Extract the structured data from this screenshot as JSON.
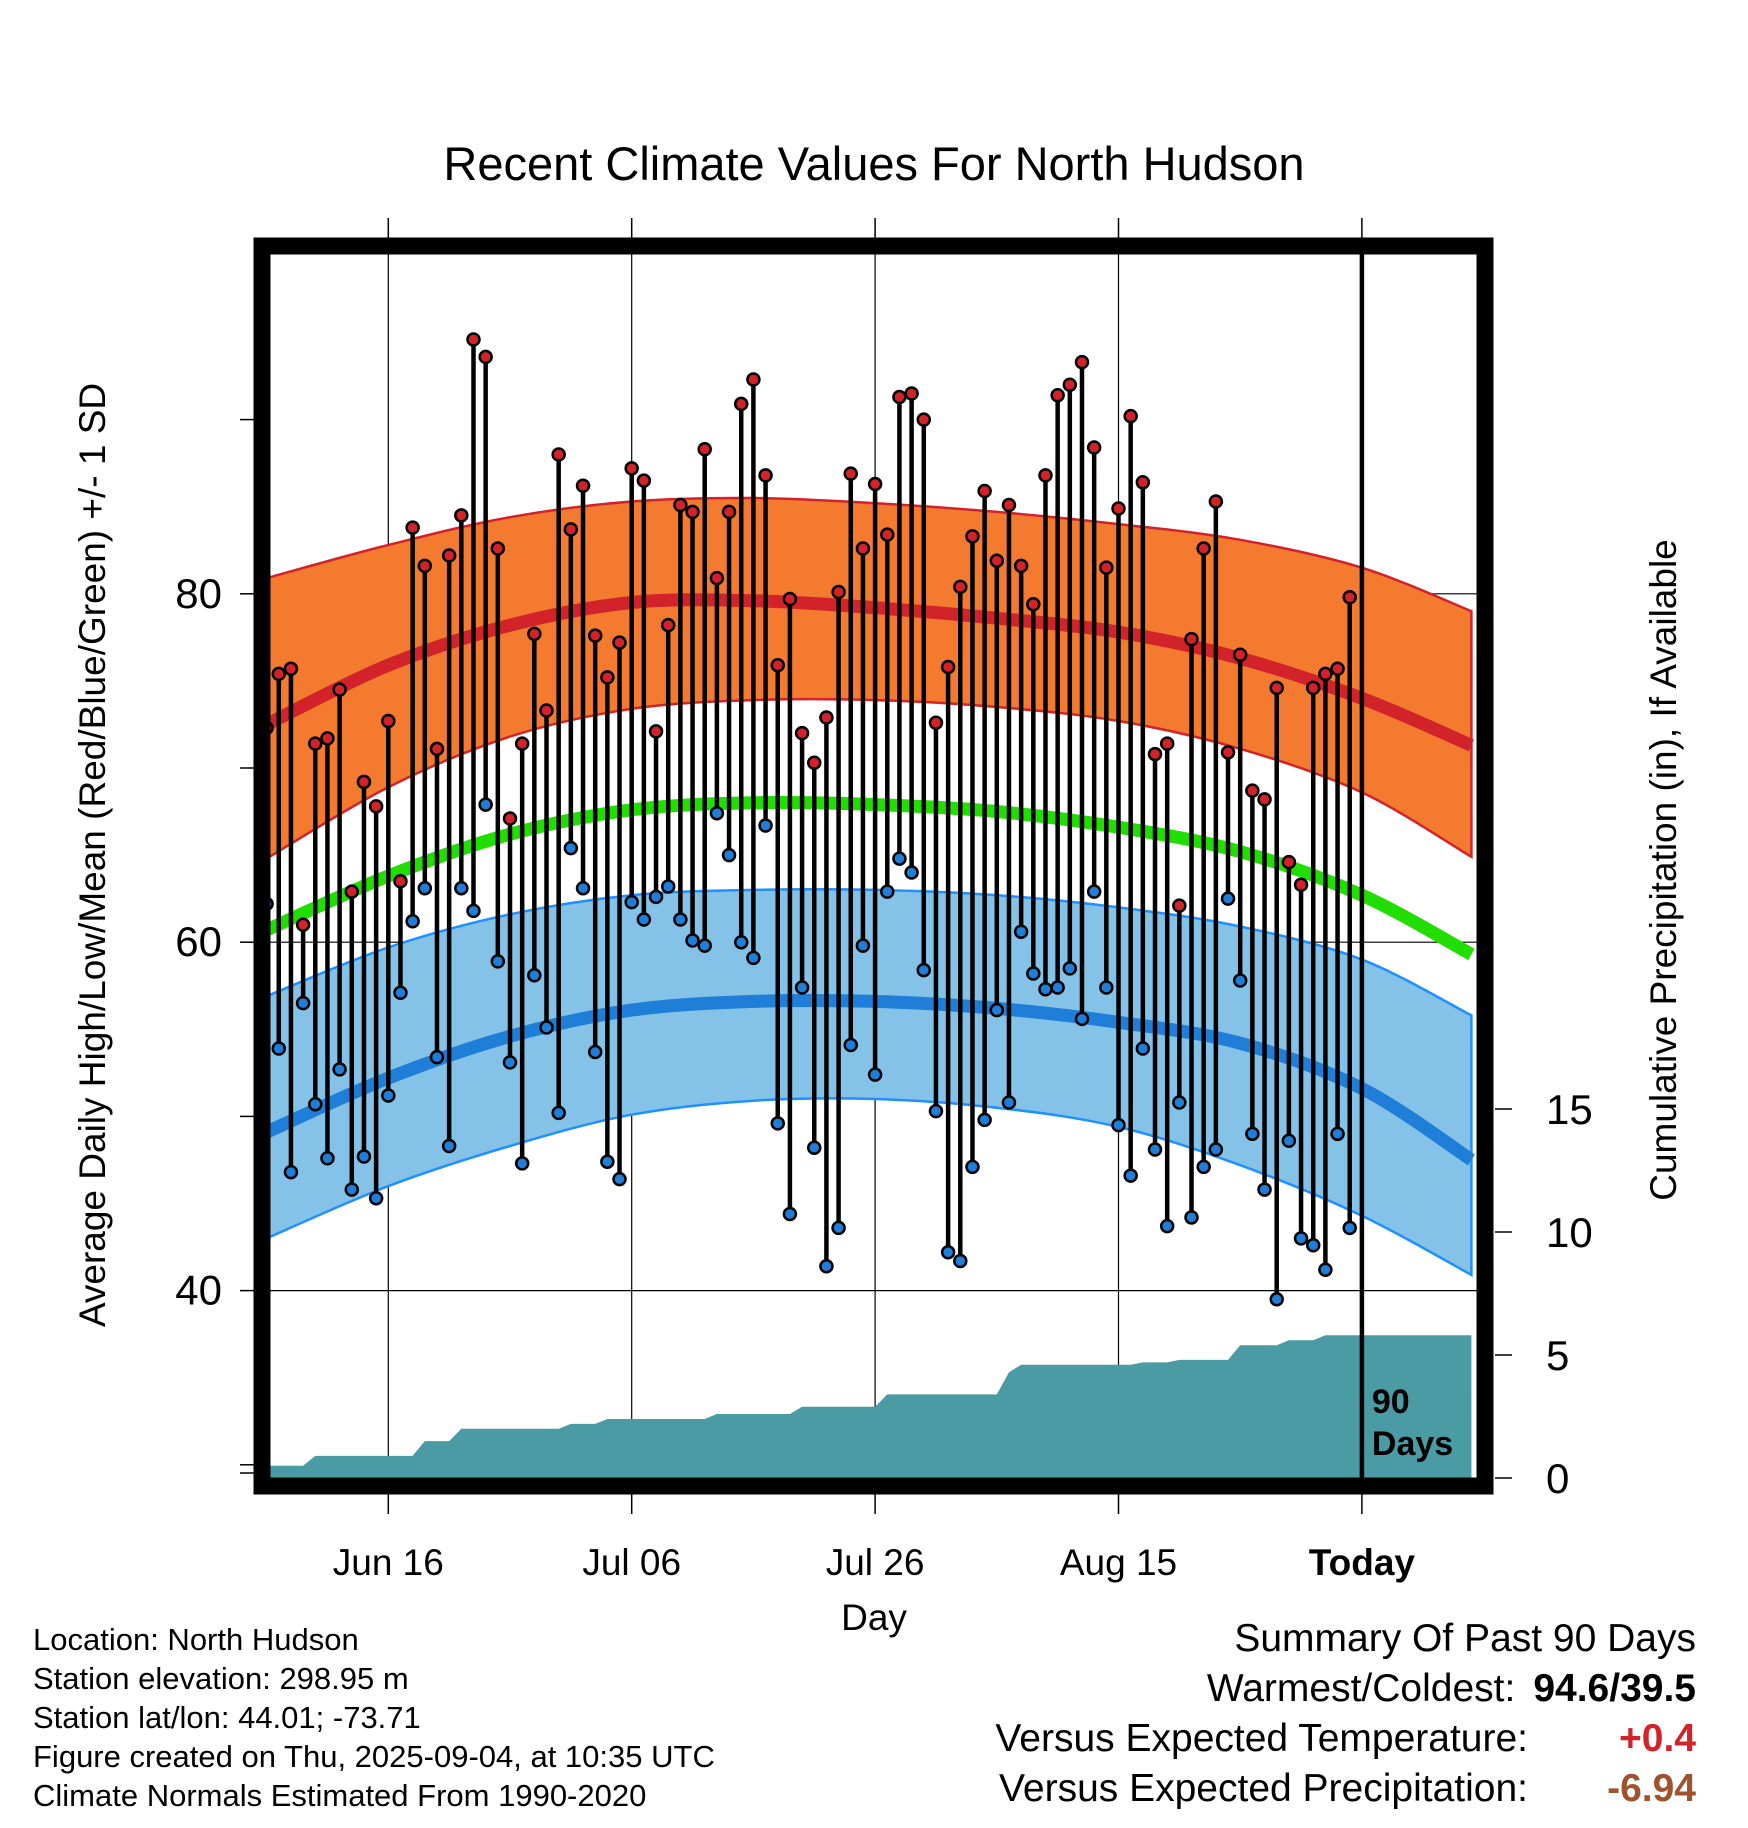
{
  "chart_data": {
    "type": "line",
    "title": "Recent Climate Values For North Hudson",
    "xlabel": "Day",
    "ylabel": "Average Daily High/Low/Mean (Red/Blue/Green) +/- 1 SD",
    "ylabel_right": "Cumulative Precipitation (in), If Available",
    "x_tick_labels": [
      "Jun 16",
      "Jul 06",
      "Jul 26",
      "Aug 15",
      "Today"
    ],
    "x_tick_days": [
      10,
      30,
      50,
      70,
      90
    ],
    "xlim": [
      -1,
      99
    ],
    "ylim": [
      26,
      96
    ],
    "y_ticks": [
      40,
      60,
      80
    ],
    "y_ticks_minor": [
      30,
      50,
      70,
      90
    ],
    "y2_ticks": [
      0,
      5,
      10,
      15
    ],
    "y2_lim": [
      0,
      56
    ],
    "today_label": "90\nDays",
    "normals": {
      "x": [
        0,
        10,
        20,
        30,
        40,
        50,
        60,
        70,
        80,
        90,
        99
      ],
      "high_mean": [
        72.5,
        75.9,
        78.2,
        79.5,
        79.6,
        79.2,
        78.6,
        77.8,
        76.3,
        74.0,
        71.3
      ],
      "high_upper": [
        80.9,
        82.8,
        84.4,
        85.3,
        85.5,
        85.2,
        84.7,
        84.0,
        83.1,
        81.5,
        79.0
      ],
      "high_lower": [
        64.8,
        68.9,
        71.8,
        73.4,
        73.9,
        73.9,
        73.5,
        72.7,
        71.1,
        68.6,
        64.9
      ],
      "avg_mean": [
        60.7,
        63.8,
        66.2,
        67.6,
        68.0,
        67.9,
        67.5,
        66.6,
        65.2,
        62.7,
        59.3
      ],
      "low_mean": [
        49.1,
        52.2,
        54.6,
        56.1,
        56.6,
        56.6,
        56.2,
        55.4,
        54.2,
        51.6,
        47.5
      ],
      "low_upper": [
        56.9,
        59.7,
        61.6,
        62.7,
        63.0,
        63.0,
        62.7,
        62.0,
        60.9,
        59.0,
        55.8
      ],
      "low_lower": [
        43.0,
        46.0,
        48.3,
        50.1,
        50.9,
        51.0,
        50.5,
        49.4,
        47.2,
        44.3,
        40.9
      ]
    },
    "series": [
      {
        "name": "High",
        "color": "#d2232a",
        "values": [
          72.3,
          75.4,
          75.7,
          61.0,
          71.4,
          71.7,
          74.5,
          62.9,
          69.2,
          67.8,
          72.7,
          63.5,
          83.8,
          81.6,
          71.1,
          82.2,
          84.5,
          94.6,
          93.6,
          82.6,
          67.1,
          71.4,
          77.7,
          73.3,
          88.0,
          83.7,
          86.2,
          77.6,
          75.2,
          77.2,
          87.2,
          86.5,
          72.1,
          78.2,
          85.1,
          84.7,
          88.3,
          80.9,
          84.7,
          90.9,
          92.3,
          86.8,
          75.9,
          79.7,
          72.0,
          70.3,
          72.9,
          80.1,
          86.9,
          82.6,
          86.3,
          83.4,
          91.3,
          91.5,
          90.0,
          72.6,
          75.8,
          80.4,
          83.3,
          85.9,
          81.9,
          85.1,
          81.6,
          79.4,
          86.8,
          91.4,
          92.0,
          93.3,
          88.4,
          81.5,
          84.9,
          90.2,
          86.4,
          70.8,
          71.4,
          62.1,
          77.4,
          82.6,
          85.3,
          70.9,
          76.5,
          68.7,
          68.2,
          74.6,
          64.6,
          63.3,
          74.6,
          75.4,
          75.7,
          79.8
        ]
      },
      {
        "name": "Low",
        "color": "#1e7ed8",
        "values": [
          62.2,
          53.9,
          46.8,
          56.5,
          50.7,
          47.6,
          52.7,
          45.8,
          47.7,
          45.3,
          51.2,
          57.1,
          61.2,
          63.1,
          53.4,
          48.3,
          63.1,
          61.8,
          67.9,
          58.9,
          53.1,
          47.3,
          58.1,
          55.1,
          50.2,
          65.4,
          63.1,
          53.7,
          47.4,
          46.4,
          62.3,
          61.3,
          62.6,
          63.2,
          61.3,
          60.1,
          59.8,
          67.4,
          65.0,
          60.0,
          59.1,
          66.7,
          49.6,
          44.4,
          57.4,
          48.2,
          41.4,
          43.6,
          54.1,
          59.8,
          52.4,
          62.9,
          64.8,
          64.0,
          58.4,
          50.3,
          42.2,
          41.7,
          47.1,
          49.8,
          56.1,
          50.8,
          60.6,
          58.2,
          57.3,
          57.4,
          58.5,
          55.6,
          62.9,
          57.4,
          49.5,
          46.6,
          53.9,
          48.1,
          43.7,
          50.8,
          44.2,
          47.1,
          48.1,
          62.5,
          57.8,
          49.0,
          45.8,
          39.5,
          48.6,
          43.0,
          42.6,
          41.2,
          49.0,
          43.6
        ]
      },
      {
        "name": "Cumulative Precipitation",
        "color": "#4a9ba4",
        "x": [
          0,
          3,
          4,
          12,
          13,
          15,
          16,
          24,
          25,
          27,
          28,
          36,
          37,
          43,
          44,
          50,
          51,
          60,
          61,
          62,
          71,
          72,
          74,
          75,
          79,
          80,
          83,
          84,
          86,
          87,
          90,
          99
        ],
        "values": [
          0.5,
          0.5,
          0.9,
          0.9,
          1.5,
          1.5,
          2.0,
          2.0,
          2.2,
          2.2,
          2.4,
          2.4,
          2.6,
          2.6,
          2.9,
          2.9,
          3.4,
          3.4,
          4.3,
          4.6,
          4.6,
          4.7,
          4.7,
          4.8,
          4.8,
          5.4,
          5.4,
          5.6,
          5.6,
          5.8,
          5.8,
          5.8
        ]
      }
    ]
  },
  "info": {
    "location": "Location: North Hudson",
    "elevation": "Station elevation: 298.95 m",
    "latlon": "Station lat/lon: 44.01; -73.71",
    "created": "Figure created on Thu, 2025-09-04, at 10:35 UTC",
    "normals": "Climate Normals Estimated From 1990-2020"
  },
  "summary": {
    "title": "Summary Of Past 90 Days",
    "warmest_label": "Warmest/Coldest:",
    "warmest_value": "94.6/39.5",
    "temp_label": "Versus Expected Temperature:",
    "temp_value": "+0.4",
    "temp_color": "#d2232a",
    "precip_label": "Versus Expected Precipitation:",
    "precip_value": "-6.94",
    "precip_color": "#a0522d"
  },
  "colors": {
    "high_band": "#f47a30",
    "high_mean": "#d2232a",
    "low_band": "#85c2e8",
    "low_mean": "#1e7ed8",
    "low_band_edge": "#1e90ff",
    "avg_mean": "#22dd00",
    "precip": "#4a9ba4"
  }
}
